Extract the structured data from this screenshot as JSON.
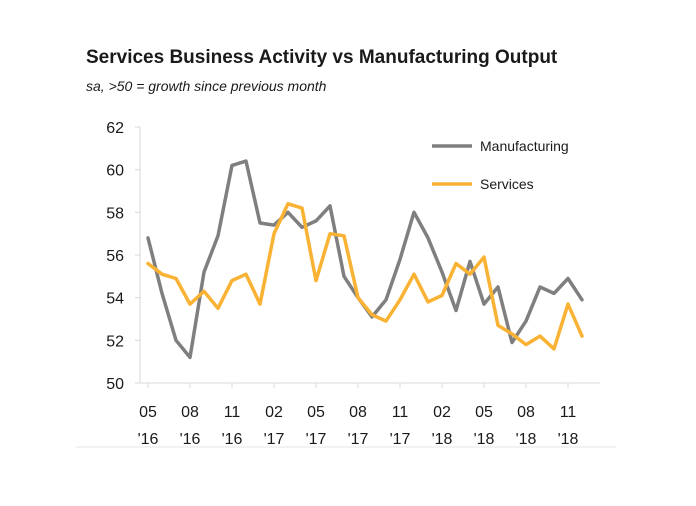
{
  "chart_data": {
    "type": "line",
    "title": "Services Business Activity vs Manufacturing Output",
    "subtitle": "sa, >50 = growth since previous month",
    "xlabel": "",
    "ylabel": "",
    "ylim": [
      50,
      62
    ],
    "yticks": [
      50,
      52,
      54,
      56,
      58,
      60,
      62
    ],
    "grid": false,
    "legend_position": "top-right",
    "x_tick_labels": [
      {
        "month": "05",
        "year": "'16"
      },
      {
        "month": "08",
        "year": "'16"
      },
      {
        "month": "11",
        "year": "'16"
      },
      {
        "month": "02",
        "year": "'17"
      },
      {
        "month": "05",
        "year": "'17"
      },
      {
        "month": "08",
        "year": "'17"
      },
      {
        "month": "11",
        "year": "'17"
      },
      {
        "month": "02",
        "year": "'18"
      },
      {
        "month": "05",
        "year": "'18"
      },
      {
        "month": "08",
        "year": "'18"
      },
      {
        "month": "11",
        "year": "'18"
      }
    ],
    "series": [
      {
        "name": "Manufacturing",
        "color": "#7f7f7f",
        "values": [
          56.8,
          54.2,
          52.0,
          51.2,
          55.2,
          56.9,
          60.2,
          60.4,
          57.5,
          57.4,
          58.0,
          57.3,
          57.6,
          58.3,
          55.0,
          54.0,
          53.1,
          53.9,
          55.8,
          58.0,
          56.8,
          55.2,
          53.4,
          55.7,
          53.7,
          54.5,
          51.9,
          52.9,
          54.5,
          54.2,
          54.9,
          53.9
        ]
      },
      {
        "name": "Services",
        "color": "#f9b233",
        "values": [
          55.6,
          55.1,
          54.9,
          53.7,
          54.3,
          53.5,
          54.8,
          55.1,
          53.7,
          57.0,
          58.4,
          58.2,
          54.8,
          57.0,
          56.9,
          54.0,
          53.2,
          52.9,
          53.9,
          55.1,
          53.8,
          54.1,
          55.6,
          55.1,
          55.9,
          52.7,
          52.3,
          51.8,
          52.2,
          51.6,
          53.7,
          52.2
        ]
      }
    ]
  }
}
